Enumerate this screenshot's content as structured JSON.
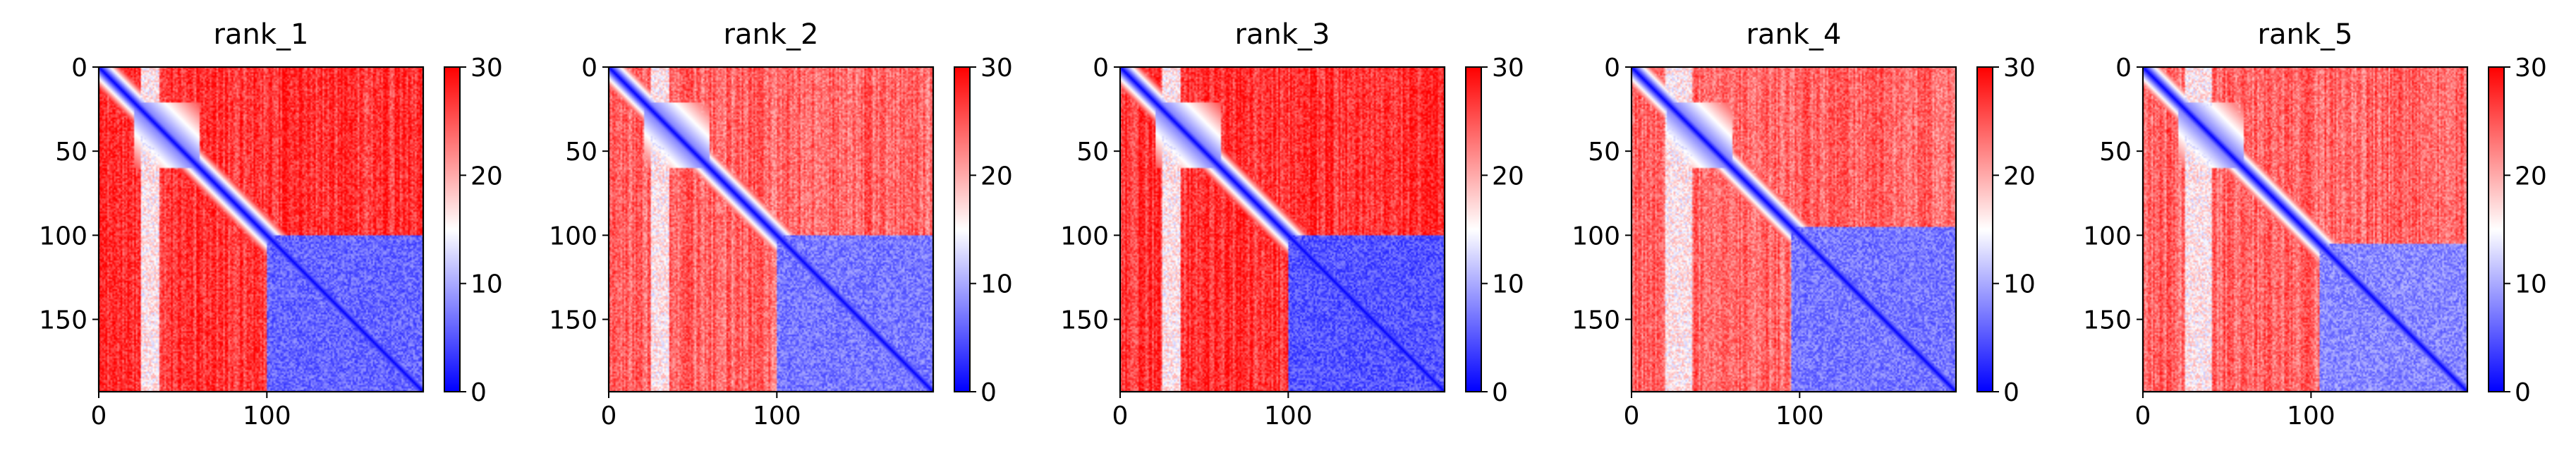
{
  "figure": {
    "panels": [
      {
        "title": "rank_1"
      },
      {
        "title": "rank_2"
      },
      {
        "title": "rank_3"
      },
      {
        "title": "rank_4"
      },
      {
        "title": "rank_5"
      }
    ]
  },
  "colors": {
    "low": "#0000ff",
    "mid": "#ffffff",
    "high": "#ff0000",
    "axis": "#000000"
  },
  "chart_data": [
    {
      "type": "heatmap",
      "title": "rank_1",
      "n": 193,
      "xticks": [
        0,
        100
      ],
      "yticks": [
        0,
        50,
        100,
        150
      ],
      "colorbar": {
        "min": 0,
        "max": 30,
        "ticks": [
          0,
          10,
          20,
          30
        ],
        "colormap": "bwr"
      },
      "structure": {
        "domain_split": 100,
        "near_diagonal_value": 0,
        "inter_domain_value": 27,
        "intra_domain_value": 6,
        "low_columns": [
          25,
          35
        ]
      }
    },
    {
      "type": "heatmap",
      "title": "rank_2",
      "n": 193,
      "xticks": [
        0,
        100
      ],
      "yticks": [
        0,
        50,
        100,
        150
      ],
      "colorbar": {
        "min": 0,
        "max": 30,
        "ticks": [
          0,
          10,
          20,
          30
        ],
        "colormap": "bwr"
      },
      "structure": {
        "domain_split": 100,
        "near_diagonal_value": 0,
        "inter_domain_value": 24,
        "intra_domain_value": 7,
        "low_columns": [
          25,
          35
        ]
      }
    },
    {
      "type": "heatmap",
      "title": "rank_3",
      "n": 193,
      "xticks": [
        0,
        100
      ],
      "yticks": [
        0,
        50,
        100,
        150
      ],
      "colorbar": {
        "min": 0,
        "max": 30,
        "ticks": [
          0,
          10,
          20,
          30
        ],
        "colormap": "bwr"
      },
      "structure": {
        "domain_split": 100,
        "near_diagonal_value": 0,
        "inter_domain_value": 27,
        "intra_domain_value": 5,
        "low_columns": [
          25,
          35
        ]
      }
    },
    {
      "type": "heatmap",
      "title": "rank_4",
      "n": 193,
      "xticks": [
        0,
        100
      ],
      "yticks": [
        0,
        50,
        100,
        150
      ],
      "colorbar": {
        "min": 0,
        "max": 30,
        "ticks": [
          0,
          10,
          20,
          30
        ],
        "colormap": "bwr"
      },
      "structure": {
        "domain_split": 95,
        "near_diagonal_value": 0,
        "inter_domain_value": 24,
        "intra_domain_value": 7,
        "low_columns": [
          20,
          35
        ]
      }
    },
    {
      "type": "heatmap",
      "title": "rank_5",
      "n": 193,
      "xticks": [
        0,
        100
      ],
      "yticks": [
        0,
        50,
        100,
        150
      ],
      "colorbar": {
        "min": 0,
        "max": 30,
        "ticks": [
          0,
          10,
          20,
          30
        ],
        "colormap": "bwr"
      },
      "structure": {
        "domain_split": 105,
        "near_diagonal_value": 0,
        "inter_domain_value": 24,
        "intra_domain_value": 8,
        "low_columns": [
          25,
          40
        ]
      }
    }
  ]
}
